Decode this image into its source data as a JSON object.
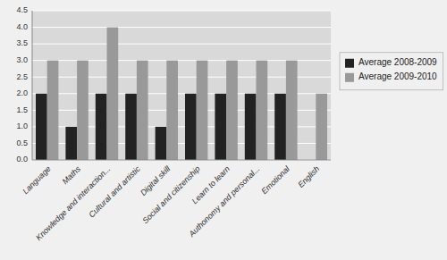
{
  "chart_data": {
    "type": "bar",
    "categories": [
      "Language",
      "Maths",
      "Knowledge and interaction...",
      "Cultural and artistic",
      "Digital skill",
      "Social and citizenship",
      "Learn to learn",
      "Authonomy and personal...",
      "Emotional",
      "English"
    ],
    "series": [
      {
        "name": "Average 2008-2009",
        "color": "#222222",
        "values": [
          2,
          1,
          2,
          2,
          1,
          2,
          2,
          2,
          2,
          0
        ]
      },
      {
        "name": "Average 2009-2010",
        "color": "#999999",
        "values": [
          3,
          3,
          4,
          3,
          3,
          3,
          3,
          3,
          3,
          2
        ]
      }
    ],
    "ylim": [
      0,
      4.5
    ],
    "yticks": [
      {
        "value": 0,
        "label": "0.0"
      },
      0.5,
      {
        "value": 1,
        "label": "1.0"
      },
      1.5,
      {
        "value": 2,
        "label": "2.0"
      },
      2.5,
      {
        "value": 3,
        "label": "3.0"
      },
      3.5,
      {
        "value": 4,
        "label": "4.0"
      },
      4.5
    ],
    "grid": true,
    "legend": "right"
  }
}
